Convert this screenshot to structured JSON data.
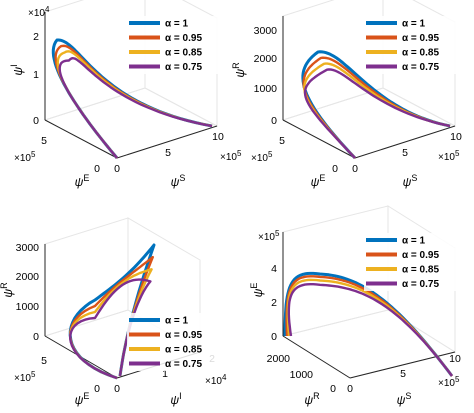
{
  "figure": {
    "legend_entries": [
      "α = 1",
      "α = 0.95",
      "α = 0.85",
      "α = 0.75"
    ],
    "colors": [
      "#0072BD",
      "#D95319",
      "#EDB120",
      "#7E2F8E"
    ]
  },
  "chart_data": [
    {
      "type": "line",
      "projection": "3d",
      "xlabel": "ψS",
      "ylabel": "ψE",
      "zlabel": "ψI",
      "x_ticks": [
        "0",
        "5",
        "10"
      ],
      "x_multiplier": "×10⁵",
      "y_ticks": [
        "0",
        "5"
      ],
      "y_multiplier": "×10⁵",
      "z_ticks": [
        "0",
        "1",
        "2"
      ],
      "z_multiplier": "×10⁴",
      "legend_placement": "top-right",
      "series": [
        {
          "name": "α = 1",
          "peak": 19000
        },
        {
          "name": "α = 0.95",
          "peak": 17500
        },
        {
          "name": "α = 0.85",
          "peak": 16000
        },
        {
          "name": "α = 0.75",
          "peak": 14000
        }
      ]
    },
    {
      "type": "line",
      "projection": "3d",
      "xlabel": "ψS",
      "ylabel": "ψE",
      "zlabel": "ψR",
      "x_ticks": [
        "0",
        "5",
        "10"
      ],
      "x_multiplier": "×10⁵",
      "y_ticks": [
        "0",
        "5"
      ],
      "y_multiplier": "×10⁵",
      "z_ticks": [
        "0",
        "1000",
        "2000",
        "3000"
      ],
      "legend_placement": "top-right",
      "series": [
        {
          "name": "α = 1",
          "peak": 2300
        },
        {
          "name": "α = 0.95",
          "peak": 2100
        },
        {
          "name": "α = 0.85",
          "peak": 1900
        },
        {
          "name": "α = 0.75",
          "peak": 1700
        }
      ]
    },
    {
      "type": "line",
      "projection": "3d",
      "xlabel": "ψI",
      "ylabel": "ψE",
      "zlabel": "ψR",
      "x_ticks": [
        "0",
        "1",
        "2"
      ],
      "x_multiplier": "×10⁴",
      "y_ticks": [
        "0",
        "5"
      ],
      "y_multiplier": "×10⁵",
      "z_ticks": [
        "0",
        "1000",
        "2000",
        "3000"
      ],
      "legend_placement": "bottom-right",
      "series": [
        {
          "name": "α = 1",
          "peak": 3000
        },
        {
          "name": "α = 0.95",
          "peak": 2600
        },
        {
          "name": "α = 0.85",
          "peak": 2200
        },
        {
          "name": "α = 0.75",
          "peak": 1800
        }
      ]
    },
    {
      "type": "line",
      "projection": "3d",
      "xlabel": "ψS",
      "ylabel": "ψR",
      "zlabel": "ψE",
      "x_ticks": [
        "0",
        "5",
        "10"
      ],
      "x_multiplier": "×10⁵",
      "y_ticks": [
        "0",
        "1000",
        "2000"
      ],
      "z_ticks": [
        "0",
        "2",
        "4"
      ],
      "z_multiplier": "×10⁵",
      "legend_placement": "top-right",
      "series": [
        {
          "name": "α = 1",
          "peak": 430000
        },
        {
          "name": "α = 0.95",
          "peak": 410000
        },
        {
          "name": "α = 0.85",
          "peak": 385000
        },
        {
          "name": "α = 0.75",
          "peak": 355000
        }
      ]
    }
  ]
}
